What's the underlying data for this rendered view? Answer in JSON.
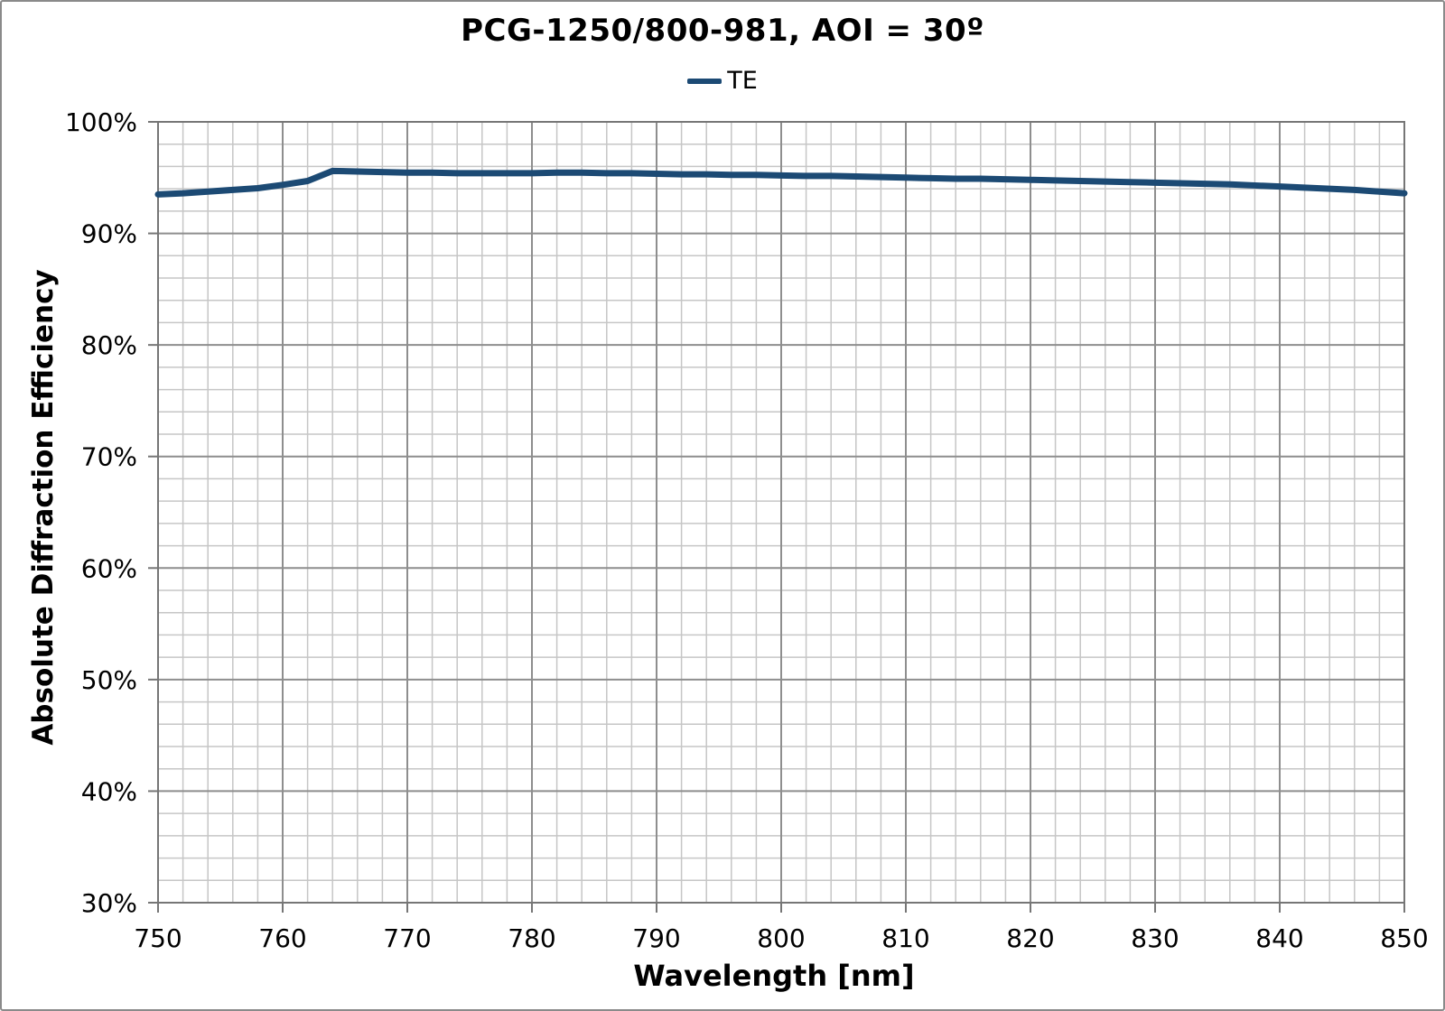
{
  "chart_data": {
    "type": "line",
    "title": "PCG-1250/800-981, AOI = 30º",
    "xlabel": "Wavelength [nm]",
    "ylabel": "Absolute Diffraction Efficiency",
    "xlim": [
      750,
      850
    ],
    "ylim_percent": [
      30,
      100
    ],
    "x_major_tick_step": 10,
    "x_minor_tick_step": 2,
    "y_major_tick_step_percent": 10,
    "y_minor_tick_step_percent": 2,
    "x_tick_labels": [
      "750",
      "760",
      "770",
      "780",
      "790",
      "800",
      "810",
      "820",
      "830",
      "840",
      "850"
    ],
    "y_tick_labels": [
      "30%",
      "40%",
      "50%",
      "60%",
      "70%",
      "80%",
      "90%",
      "100%"
    ],
    "grid": {
      "major": true,
      "minor": true
    },
    "legend": {
      "position": "top-center",
      "entries": [
        {
          "label": "TE",
          "color": "#1c4a74"
        }
      ]
    },
    "series": [
      {
        "name": "TE",
        "color": "#1c4a74",
        "x": [
          750,
          752,
          754,
          756,
          758,
          760,
          762,
          764,
          766,
          768,
          770,
          772,
          774,
          776,
          778,
          780,
          782,
          784,
          786,
          788,
          790,
          792,
          794,
          796,
          798,
          800,
          802,
          804,
          806,
          808,
          810,
          812,
          814,
          816,
          818,
          820,
          822,
          824,
          826,
          828,
          830,
          832,
          834,
          836,
          838,
          840,
          842,
          844,
          846,
          848,
          850
        ],
        "values_percent": [
          93.5,
          93.6,
          93.75,
          93.9,
          94.05,
          94.35,
          94.7,
          95.6,
          95.55,
          95.5,
          95.45,
          95.45,
          95.4,
          95.4,
          95.4,
          95.4,
          95.45,
          95.45,
          95.4,
          95.4,
          95.35,
          95.3,
          95.3,
          95.25,
          95.25,
          95.2,
          95.15,
          95.15,
          95.1,
          95.05,
          95.0,
          94.95,
          94.9,
          94.9,
          94.85,
          94.8,
          94.75,
          94.7,
          94.65,
          94.6,
          94.55,
          94.5,
          94.45,
          94.4,
          94.3,
          94.2,
          94.1,
          94.0,
          93.9,
          93.75,
          93.6
        ]
      }
    ],
    "colors": {
      "line": "#1c4a74",
      "grid_major": "#8e8e8e",
      "grid_minor": "#c6c6c6",
      "axis": "#767676",
      "text": "#000000",
      "background": "#ffffff"
    }
  }
}
